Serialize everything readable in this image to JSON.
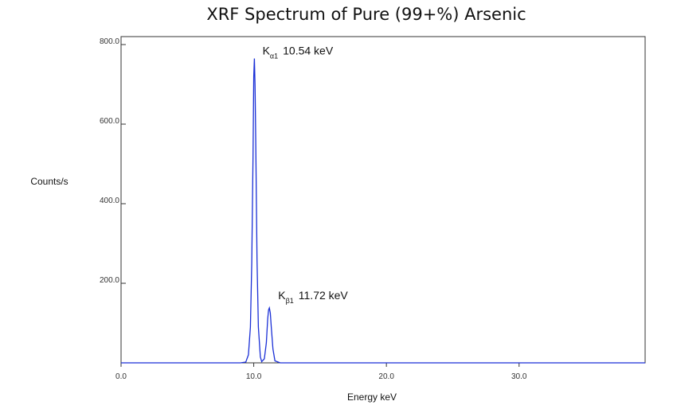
{
  "chart_data": {
    "type": "line",
    "title": "XRF Spectrum of Pure (99+%) Arsenic",
    "xlabel": "Energy keV",
    "ylabel": "Counts/s",
    "xlim": [
      0,
      39.5
    ],
    "ylim": [
      0,
      820
    ],
    "x_ticks": [
      0,
      10,
      20,
      30
    ],
    "x_tick_labels": [
      "0.0",
      "10.0",
      "20.0",
      "30.0"
    ],
    "y_ticks": [
      200,
      400,
      600,
      800
    ],
    "y_tick_labels": [
      "200.0",
      "400.0",
      "600.0",
      "800.0"
    ],
    "grid": false,
    "line_color": "#1a2fd6",
    "series": [
      {
        "x": [
          0,
          9.0,
          9.4,
          9.6,
          9.75,
          9.85,
          9.95,
          10.0,
          10.05,
          10.1,
          10.15,
          10.25,
          10.35,
          10.5,
          10.6,
          10.8,
          10.95,
          11.05,
          11.12,
          11.18,
          11.25,
          11.32,
          11.45,
          11.6,
          12.0,
          39.5
        ],
        "y": [
          0,
          0,
          2,
          20,
          90,
          250,
          520,
          720,
          765,
          700,
          560,
          260,
          90,
          15,
          3,
          10,
          50,
          110,
          133,
          138,
          125,
          90,
          35,
          5,
          0,
          0
        ]
      }
    ],
    "annotations": [
      {
        "main": "K",
        "sub": "α1",
        "text": "10.54 keV",
        "x": 10.54,
        "y": 775
      },
      {
        "main": "K",
        "sub": "β1",
        "text": "11.72 keV",
        "x": 11.72,
        "y": 160
      }
    ]
  }
}
